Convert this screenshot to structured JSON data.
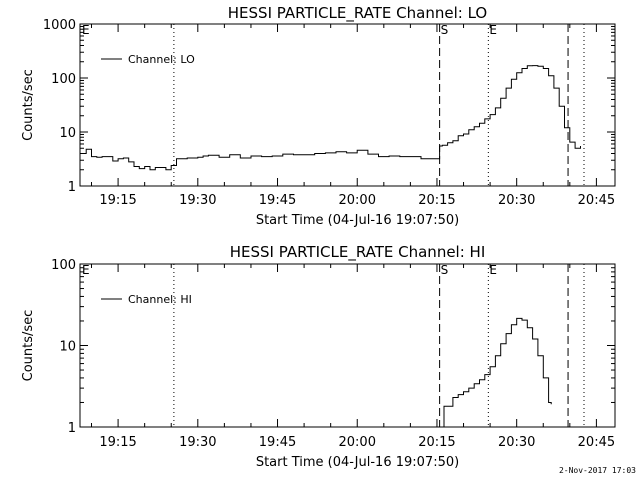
{
  "footer_date": "2-Nov-2017 17:03",
  "chart_data": [
    {
      "type": "line",
      "title": "HESSI PARTICLE_RATE Channel: LO",
      "xlabel": "Start Time (04-Jul-16 19:07:50)",
      "ylabel": "Counts/sec",
      "yscale": "log",
      "xlim": [
        "19:07:50",
        "20:48:30"
      ],
      "ylim": [
        1,
        1000
      ],
      "x_ticks": [
        "19:15",
        "19:30",
        "19:45",
        "20:00",
        "20:15",
        "20:30",
        "20:45"
      ],
      "y_ticks": [
        "1",
        "10",
        "100",
        "1000"
      ],
      "legend": {
        "entries": [
          "Channel: LO"
        ],
        "position": "top-left"
      },
      "grid": false,
      "vertical_markers": [
        {
          "time": "19:25:30",
          "style": "dotted",
          "label": ""
        },
        {
          "time": "20:15:30",
          "style": "dashed",
          "label": "S"
        },
        {
          "time": "20:24:40",
          "style": "dotted",
          "label": "E"
        },
        {
          "time": "20:39:40",
          "style": "dashed",
          "label": ""
        },
        {
          "time": "20:42:40",
          "style": "dotted",
          "label": ""
        }
      ],
      "corner_label": "E",
      "series": [
        {
          "name": "Channel: LO",
          "x": [
            "19:07:50",
            "19:09:00",
            "19:10:00",
            "19:11:00",
            "19:12:00",
            "19:13:00",
            "19:14:00",
            "19:15:00",
            "19:16:00",
            "19:17:00",
            "19:18:00",
            "19:19:00",
            "19:20:00",
            "19:21:00",
            "19:22:00",
            "19:23:00",
            "19:24:00",
            "19:25:00",
            "19:26:00",
            "19:27:00",
            "19:28:00",
            "19:29:00",
            "19:30:00",
            "19:31:00",
            "19:32:00",
            "19:34:00",
            "19:36:00",
            "19:38:00",
            "19:40:00",
            "19:42:00",
            "19:44:00",
            "19:46:00",
            "19:48:00",
            "19:50:00",
            "19:52:00",
            "19:54:00",
            "19:56:00",
            "19:58:00",
            "20:00:00",
            "20:02:00",
            "20:04:00",
            "20:06:00",
            "20:08:00",
            "20:10:00",
            "20:12:00",
            "20:14:00",
            "20:15:30",
            "20:16:00",
            "20:17:00",
            "20:18:00",
            "20:19:00",
            "20:20:00",
            "20:21:00",
            "20:22:00",
            "20:23:00",
            "20:24:00",
            "20:25:00",
            "20:26:00",
            "20:27:00",
            "20:28:00",
            "20:29:00",
            "20:30:00",
            "20:31:00",
            "20:32:00",
            "20:33:00",
            "20:34:00",
            "20:35:00",
            "20:36:00",
            "20:37:00",
            "20:38:00",
            "20:39:00",
            "20:40:00",
            "20:41:00",
            "20:42:00"
          ],
          "y": [
            4.0,
            4.8,
            3.5,
            3.4,
            3.5,
            3.5,
            2.9,
            3.2,
            3.3,
            2.8,
            2.3,
            2.1,
            2.3,
            2.0,
            2.2,
            2.2,
            2.0,
            2.4,
            3.2,
            3.2,
            3.3,
            3.3,
            3.4,
            3.6,
            3.7,
            3.4,
            3.8,
            3.3,
            3.6,
            3.5,
            3.6,
            3.9,
            3.8,
            3.8,
            4.0,
            4.1,
            4.3,
            4.1,
            4.6,
            3.9,
            3.5,
            3.6,
            3.5,
            3.5,
            3.2,
            3.2,
            5.5,
            5.7,
            6.3,
            6.9,
            8.5,
            9.2,
            11.0,
            12.5,
            14.5,
            17.5,
            21.0,
            28.0,
            42.0,
            65.0,
            95.0,
            125.0,
            150.0,
            168.0,
            170.0,
            165.0,
            150.0,
            110.0,
            65.0,
            30.0,
            12.0,
            6.5,
            5.0,
            5.5
          ]
        }
      ]
    },
    {
      "type": "line",
      "title": "HESSI PARTICLE_RATE Channel: HI",
      "xlabel": "Start Time (04-Jul-16 19:07:50)",
      "ylabel": "Counts/sec",
      "yscale": "log",
      "xlim": [
        "19:07:50",
        "20:48:30"
      ],
      "ylim": [
        1,
        100
      ],
      "x_ticks": [
        "19:15",
        "19:30",
        "19:45",
        "20:00",
        "20:15",
        "20:30",
        "20:45"
      ],
      "y_ticks": [
        "1",
        "10",
        "100"
      ],
      "legend": {
        "entries": [
          "Channel: HI"
        ],
        "position": "top-left"
      },
      "grid": false,
      "vertical_markers": [
        {
          "time": "19:25:30",
          "style": "dotted",
          "label": ""
        },
        {
          "time": "20:15:30",
          "style": "dashed",
          "label": "S"
        },
        {
          "time": "20:24:40",
          "style": "dotted",
          "label": "E"
        },
        {
          "time": "20:39:40",
          "style": "dashed",
          "label": ""
        },
        {
          "time": "20:42:40",
          "style": "dotted",
          "label": ""
        }
      ],
      "corner_label": "E",
      "series": [
        {
          "name": "Channel: HI",
          "x": [
            "20:15:35",
            "20:16:20",
            "20:17:00",
            "20:18:00",
            "20:19:00",
            "20:20:00",
            "20:21:00",
            "20:22:00",
            "20:23:00",
            "20:24:00",
            "20:25:00",
            "20:26:00",
            "20:27:00",
            "20:28:00",
            "20:29:00",
            "20:30:00",
            "20:31:00",
            "20:32:00",
            "20:33:00",
            "20:34:00",
            "20:35:00",
            "20:36:00",
            "20:36:30"
          ],
          "y": [
            1.0,
            1.8,
            1.8,
            2.3,
            2.5,
            2.7,
            3.0,
            3.4,
            3.8,
            4.4,
            5.5,
            7.5,
            10.5,
            14.0,
            18.0,
            21.5,
            20.5,
            16.5,
            12.0,
            7.5,
            4.0,
            2.0,
            1.9
          ]
        }
      ]
    }
  ]
}
